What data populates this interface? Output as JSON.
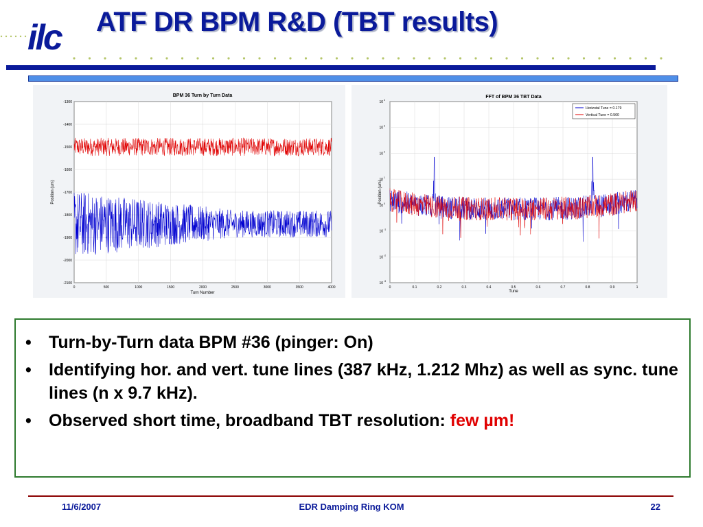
{
  "slide": {
    "title": "ATF DR BPM R&D (TBT results)",
    "logo_text": "ilc"
  },
  "colors": {
    "title": "#0a1a9a",
    "rule": "#0a1a9a",
    "accent_strip": "#4f8fe8",
    "box_border": "#2d7a2d",
    "horizontal_trace": "#e00000",
    "vertical_trace": "#0000d0",
    "footer_rule": "#8b0000"
  },
  "bullets": [
    {
      "text": "Turn-by-Turn data BPM #36 (pinger: On)",
      "highlight": ""
    },
    {
      "text": "Identifying hor. and vert. tune lines (387 kHz, 1.212 Mhz) as well as sync. tune lines (n x 9.7 kHz).",
      "highlight": ""
    },
    {
      "text": "Observed short time, broadband TBT resolution: ",
      "highlight": "few µm!"
    }
  ],
  "bullet_glyph": "•",
  "footer": {
    "date": "11/6/2007",
    "center": "EDR Damping Ring KOM",
    "page": "22"
  },
  "chart_data": [
    {
      "type": "line",
      "title": "BPM 36 Turn by Turn Data",
      "xlabel": "Turn Number",
      "ylabel": "Position (um)",
      "xlim": [
        0,
        4000
      ],
      "ylim": [
        -2100,
        -1300
      ],
      "xticks": [
        0,
        500,
        1000,
        1500,
        2000,
        2500,
        3000,
        3500,
        4000
      ],
      "yticks": [
        -1300,
        -1400,
        -1500,
        -1600,
        -1700,
        -1800,
        -1900,
        -2000,
        -2100
      ],
      "grid": true,
      "series": [
        {
          "color": "#e00000",
          "mean": -1500,
          "noise_half_range": [
            40,
            40
          ]
        },
        {
          "color": "#0000d0",
          "mean": -1840,
          "noise_half_range": [
            150,
            60
          ]
        }
      ]
    },
    {
      "type": "line",
      "title": "FFT of BPM 36 TBT Data",
      "xlabel": "Tune",
      "ylabel": "Position (um)",
      "xlim": [
        0,
        1
      ],
      "ylim_log10": [
        -3,
        4
      ],
      "yscale": "log",
      "xticks": [
        0,
        0.1,
        0.2,
        0.3,
        0.4,
        0.5,
        0.6,
        0.7,
        0.8,
        0.9,
        1
      ],
      "ytick_exponents": [
        4,
        3,
        2,
        1,
        0,
        -1,
        -2,
        -3
      ],
      "grid": true,
      "legend_position": "top-right",
      "series": [
        {
          "name": "Horizotal Tune = 0.179",
          "color": "#0000d0",
          "peaks": [
            0.179,
            0.821
          ],
          "baseline_log10": 0
        },
        {
          "name": "Vertical Tune = 0.560",
          "color": "#e00000",
          "peaks": [],
          "baseline_log10": 0
        }
      ]
    }
  ]
}
